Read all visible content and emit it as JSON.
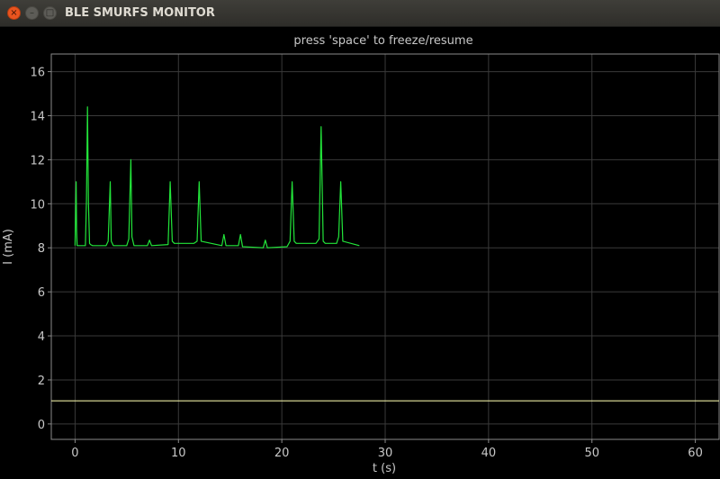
{
  "window": {
    "title": "BLE SMURFS MONITOR",
    "close_glyph": "×",
    "min_glyph": "–",
    "max_glyph": "□"
  },
  "colors": {
    "background": "#000000",
    "grid": "#3a3a3a",
    "axis": "#8a8a8a",
    "text": "#c8c8c8",
    "signal": "#22e53a",
    "threshold": "#e8e8a0"
  },
  "chart_data": {
    "type": "line",
    "title": "press 'space' to freeze/resume",
    "xlabel": "t (s)",
    "ylabel": "I (mA)",
    "xlim": [
      -2.3,
      62.3
    ],
    "ylim": [
      -0.7,
      16.8
    ],
    "xticks": [
      0,
      10,
      20,
      30,
      40,
      50,
      60
    ],
    "yticks": [
      0,
      2,
      4,
      6,
      8,
      10,
      12,
      14,
      16
    ],
    "grid": true,
    "series": [
      {
        "color": "#22e53a",
        "x": [
          0,
          0.1,
          0.15,
          0.2,
          0.3,
          1.0,
          1.1,
          1.2,
          1.3,
          1.4,
          1.5,
          1.7,
          3.0,
          3.2,
          3.4,
          3.5,
          3.7,
          5.0,
          5.2,
          5.4,
          5.5,
          5.7,
          7.0,
          7.2,
          7.4,
          9.0,
          9.2,
          9.4,
          9.6,
          11.5,
          11.8,
          12.0,
          12.2,
          14.2,
          14.4,
          14.6,
          15.8,
          16.0,
          16.2,
          18.2,
          18.4,
          18.6,
          20.5,
          20.8,
          21.0,
          21.2,
          21.4,
          23.3,
          23.6,
          23.8,
          24.0,
          24.2,
          25.3,
          25.5,
          25.7,
          25.9,
          27.5
        ],
        "y": [
          8.1,
          11.0,
          8.8,
          8.1,
          8.1,
          8.1,
          10.2,
          14.4,
          10.0,
          8.2,
          8.15,
          8.1,
          8.1,
          8.3,
          11.0,
          8.3,
          8.1,
          8.1,
          8.4,
          12.0,
          8.5,
          8.1,
          8.1,
          8.35,
          8.1,
          8.15,
          11.0,
          8.3,
          8.2,
          8.2,
          8.3,
          11.0,
          8.3,
          8.1,
          8.6,
          8.1,
          8.1,
          8.6,
          8.05,
          8.0,
          8.35,
          8.0,
          8.05,
          8.3,
          11.0,
          8.3,
          8.2,
          8.2,
          8.4,
          13.5,
          8.3,
          8.2,
          8.2,
          8.5,
          11.0,
          8.3,
          8.1
        ]
      },
      {
        "color": "#e8e8a0",
        "x": [
          -2.3,
          62.3
        ],
        "y": [
          1.05,
          1.05
        ]
      }
    ]
  }
}
